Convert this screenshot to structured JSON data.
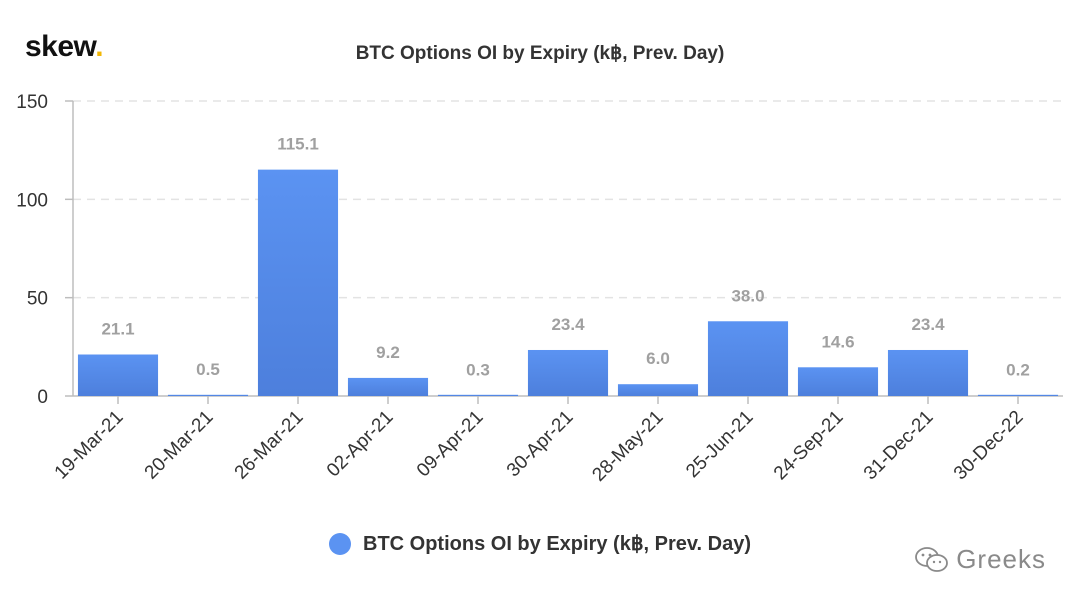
{
  "brand": {
    "name": "skew",
    "dot": "."
  },
  "watermark": {
    "label": "Greeks"
  },
  "colors": {
    "bar_top": "#5b93f2",
    "bar_bottom": "#4d7fdc",
    "axis": "#bdbdbd",
    "grid": "#e3e3e3",
    "value_label": "#a0a0a0",
    "text": "#333333",
    "accent_dot": "#f2b705"
  },
  "chart_data": {
    "type": "bar",
    "title": "BTC Options OI by Expiry (k฿, Prev. Day)",
    "categories": [
      "19-Mar-21",
      "20-Mar-21",
      "26-Mar-21",
      "02-Apr-21",
      "09-Apr-21",
      "30-Apr-21",
      "28-May-21",
      "25-Jun-21",
      "24-Sep-21",
      "31-Dec-21",
      "30-Dec-22"
    ],
    "series": [
      {
        "name": "BTC Options OI by Expiry (k฿, Prev. Day)",
        "values": [
          21.1,
          0.5,
          115.1,
          9.2,
          0.3,
          23.4,
          6.0,
          38.0,
          14.6,
          23.4,
          0.2
        ],
        "labels": [
          "21.1",
          "0.5",
          "115.1",
          "9.2",
          "0.3",
          "23.4",
          "6.0",
          "38.0",
          "14.6",
          "23.4",
          "0.2"
        ]
      }
    ],
    "ylim": [
      0,
      150
    ],
    "yticks": [
      0,
      50,
      100,
      150
    ],
    "grid": true,
    "legend": "bottom-center"
  }
}
